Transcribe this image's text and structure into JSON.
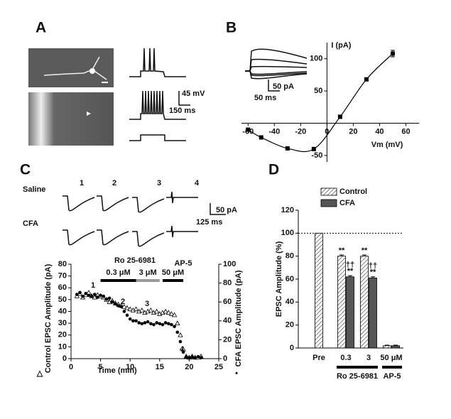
{
  "panel_labels": [
    "A",
    "B",
    "C",
    "D"
  ],
  "panel_a": {
    "scale_labels": [
      "45 mV",
      "150 ms"
    ]
  },
  "chart_data": [
    {
      "type": "line",
      "xlabel": "Vm (mV)",
      "ylabel": "I (pA)",
      "x": [
        -60,
        -50,
        -30,
        -10,
        10,
        30,
        50
      ],
      "series": [
        {
          "color": "#000",
          "values": [
            -10,
            -22,
            -39,
            -40,
            10,
            68,
            108
          ],
          "errors": [
            null,
            null,
            null,
            null,
            null,
            null,
            5
          ]
        }
      ],
      "xlim": [
        -65,
        70
      ],
      "ylim": [
        -60,
        125
      ],
      "xticks": [
        -60,
        -40,
        -20,
        0,
        20,
        40,
        60
      ],
      "yticks": [
        -50,
        50,
        100
      ],
      "inset_scale_labels": [
        "50 pA",
        "50 ms"
      ]
    },
    {
      "type": "scatter",
      "xlabel": "Time (min)",
      "ylabel": "Control EPSC Amplitude (pA)",
      "y2label": "CFA EPSC Amplitude (pA)",
      "x": [
        1,
        1.5,
        2,
        2.5,
        3,
        3.5,
        4,
        4.5,
        5,
        5.5,
        6,
        6.5,
        7,
        7.5,
        8,
        8.5,
        9,
        9.5,
        10,
        10.5,
        11,
        11.5,
        12,
        12.5,
        13,
        13.5,
        14,
        14.5,
        15,
        15.5,
        16,
        16.5,
        17,
        17.5,
        18,
        18.5,
        19,
        19.5,
        20,
        20.5,
        21,
        21.5,
        22
      ],
      "series": [
        {
          "symbol": "△",
          "marker": "triangle",
          "color": "#000",
          "values": [
            53,
            55,
            52,
            54,
            56,
            53,
            52,
            54,
            53,
            52,
            50,
            48,
            49,
            47,
            46,
            45,
            44,
            43,
            42,
            41,
            42,
            40,
            41,
            39,
            40,
            41,
            39,
            40,
            38,
            39,
            40,
            39,
            38,
            37,
            30,
            20,
            8,
            2,
            1,
            2,
            1,
            1,
            2
          ]
        },
        {
          "symbol": "•",
          "marker": "dot",
          "color": "#000",
          "axis": "y2",
          "values": [
            68,
            70,
            66,
            69,
            67,
            66,
            68,
            65,
            67,
            66,
            63,
            64,
            60,
            58,
            56,
            55,
            50,
            46,
            42,
            40,
            40,
            38,
            37,
            38,
            39,
            37,
            36,
            38,
            37,
            36,
            38,
            37,
            36,
            34,
            28,
            18,
            7,
            2,
            1,
            2,
            1,
            2,
            1
          ]
        }
      ],
      "xlim": [
        0,
        25
      ],
      "ylim": [
        0,
        80
      ],
      "y2lim": [
        0,
        100
      ],
      "xticks": [
        0,
        5,
        10,
        15,
        20,
        25
      ],
      "yticks": [
        0,
        10,
        20,
        30,
        40,
        50,
        60,
        70,
        80
      ],
      "y2ticks": [
        0,
        20,
        40,
        60,
        80,
        100
      ],
      "period_groups": [
        "Ro 25-6981",
        "AP-5"
      ],
      "periods": [
        {
          "label": "0.3 μM",
          "start": 5,
          "end": 11,
          "color": "#000"
        },
        {
          "label": "3 μM",
          "start": 11,
          "end": 15,
          "color": "#999"
        },
        {
          "label": "50 μM",
          "start": 15.5,
          "end": 19,
          "color": "#000"
        }
      ],
      "point_labels": [
        "1",
        "2",
        "3",
        "4"
      ],
      "traces": {
        "rows": [
          "Saline",
          "CFA"
        ],
        "columns": [
          "1",
          "2",
          "3",
          "4"
        ],
        "scale_labels": [
          "50 pA",
          "125 ms"
        ]
      }
    },
    {
      "type": "bar",
      "ylabel": "EPSC Amplitude (%)",
      "categories": [
        "Pre",
        "0.3",
        "3",
        "50 μM"
      ],
      "series": [
        {
          "name": "Control",
          "color": "#fff",
          "pattern": "hatch",
          "values": [
            100,
            80,
            80,
            2
          ],
          "errors": [
            0,
            1,
            1,
            0.5
          ],
          "annotations": [
            null,
            "**",
            "**",
            null
          ]
        },
        {
          "name": "CFA",
          "color": "#555",
          "values": [
            null,
            62,
            61,
            2
          ],
          "errors": [
            null,
            1,
            1,
            0.5
          ],
          "annotations": [
            null,
            "**",
            "**",
            null
          ],
          "annotations_top": [
            null,
            "††",
            "††",
            null
          ]
        }
      ],
      "ylim": [
        0,
        120
      ],
      "yticks": [
        0,
        20,
        40,
        60,
        80,
        100,
        120
      ],
      "ref_line": 100,
      "groups": [
        "Ro 25-6981",
        "AP-5"
      ]
    }
  ]
}
